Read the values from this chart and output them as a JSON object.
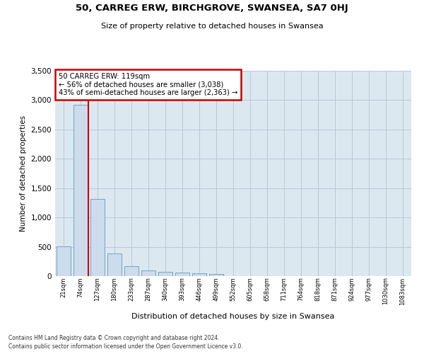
{
  "title": "50, CARREG ERW, BIRCHGROVE, SWANSEA, SA7 0HJ",
  "subtitle": "Size of property relative to detached houses in Swansea",
  "xlabel": "Distribution of detached houses by size in Swansea",
  "ylabel": "Number of detached properties",
  "footnote1": "Contains HM Land Registry data © Crown copyright and database right 2024.",
  "footnote2": "Contains public sector information licensed under the Open Government Licence v3.0.",
  "annotation_title": "50 CARREG ERW: 119sqm",
  "annotation_line1": "← 56% of detached houses are smaller (3,038)",
  "annotation_line2": "43% of semi-detached houses are larger (2,363) →",
  "bar_color": "#ccdcec",
  "bar_edge_color": "#6699bb",
  "highlight_color": "#cc0000",
  "grid_color": "#b8c8d8",
  "bg_color": "#dce8f0",
  "categories": [
    "21sqm",
    "74sqm",
    "127sqm",
    "180sqm",
    "233sqm",
    "287sqm",
    "340sqm",
    "393sqm",
    "446sqm",
    "499sqm",
    "552sqm",
    "605sqm",
    "658sqm",
    "711sqm",
    "764sqm",
    "818sqm",
    "871sqm",
    "924sqm",
    "977sqm",
    "1030sqm",
    "1083sqm"
  ],
  "values": [
    510,
    2920,
    1310,
    390,
    170,
    100,
    72,
    55,
    48,
    40,
    0,
    0,
    0,
    0,
    0,
    0,
    0,
    0,
    0,
    0,
    0
  ],
  "vline_x": 1.45,
  "ylim": [
    0,
    3500
  ],
  "yticks": [
    0,
    500,
    1000,
    1500,
    2000,
    2500,
    3000,
    3500
  ]
}
